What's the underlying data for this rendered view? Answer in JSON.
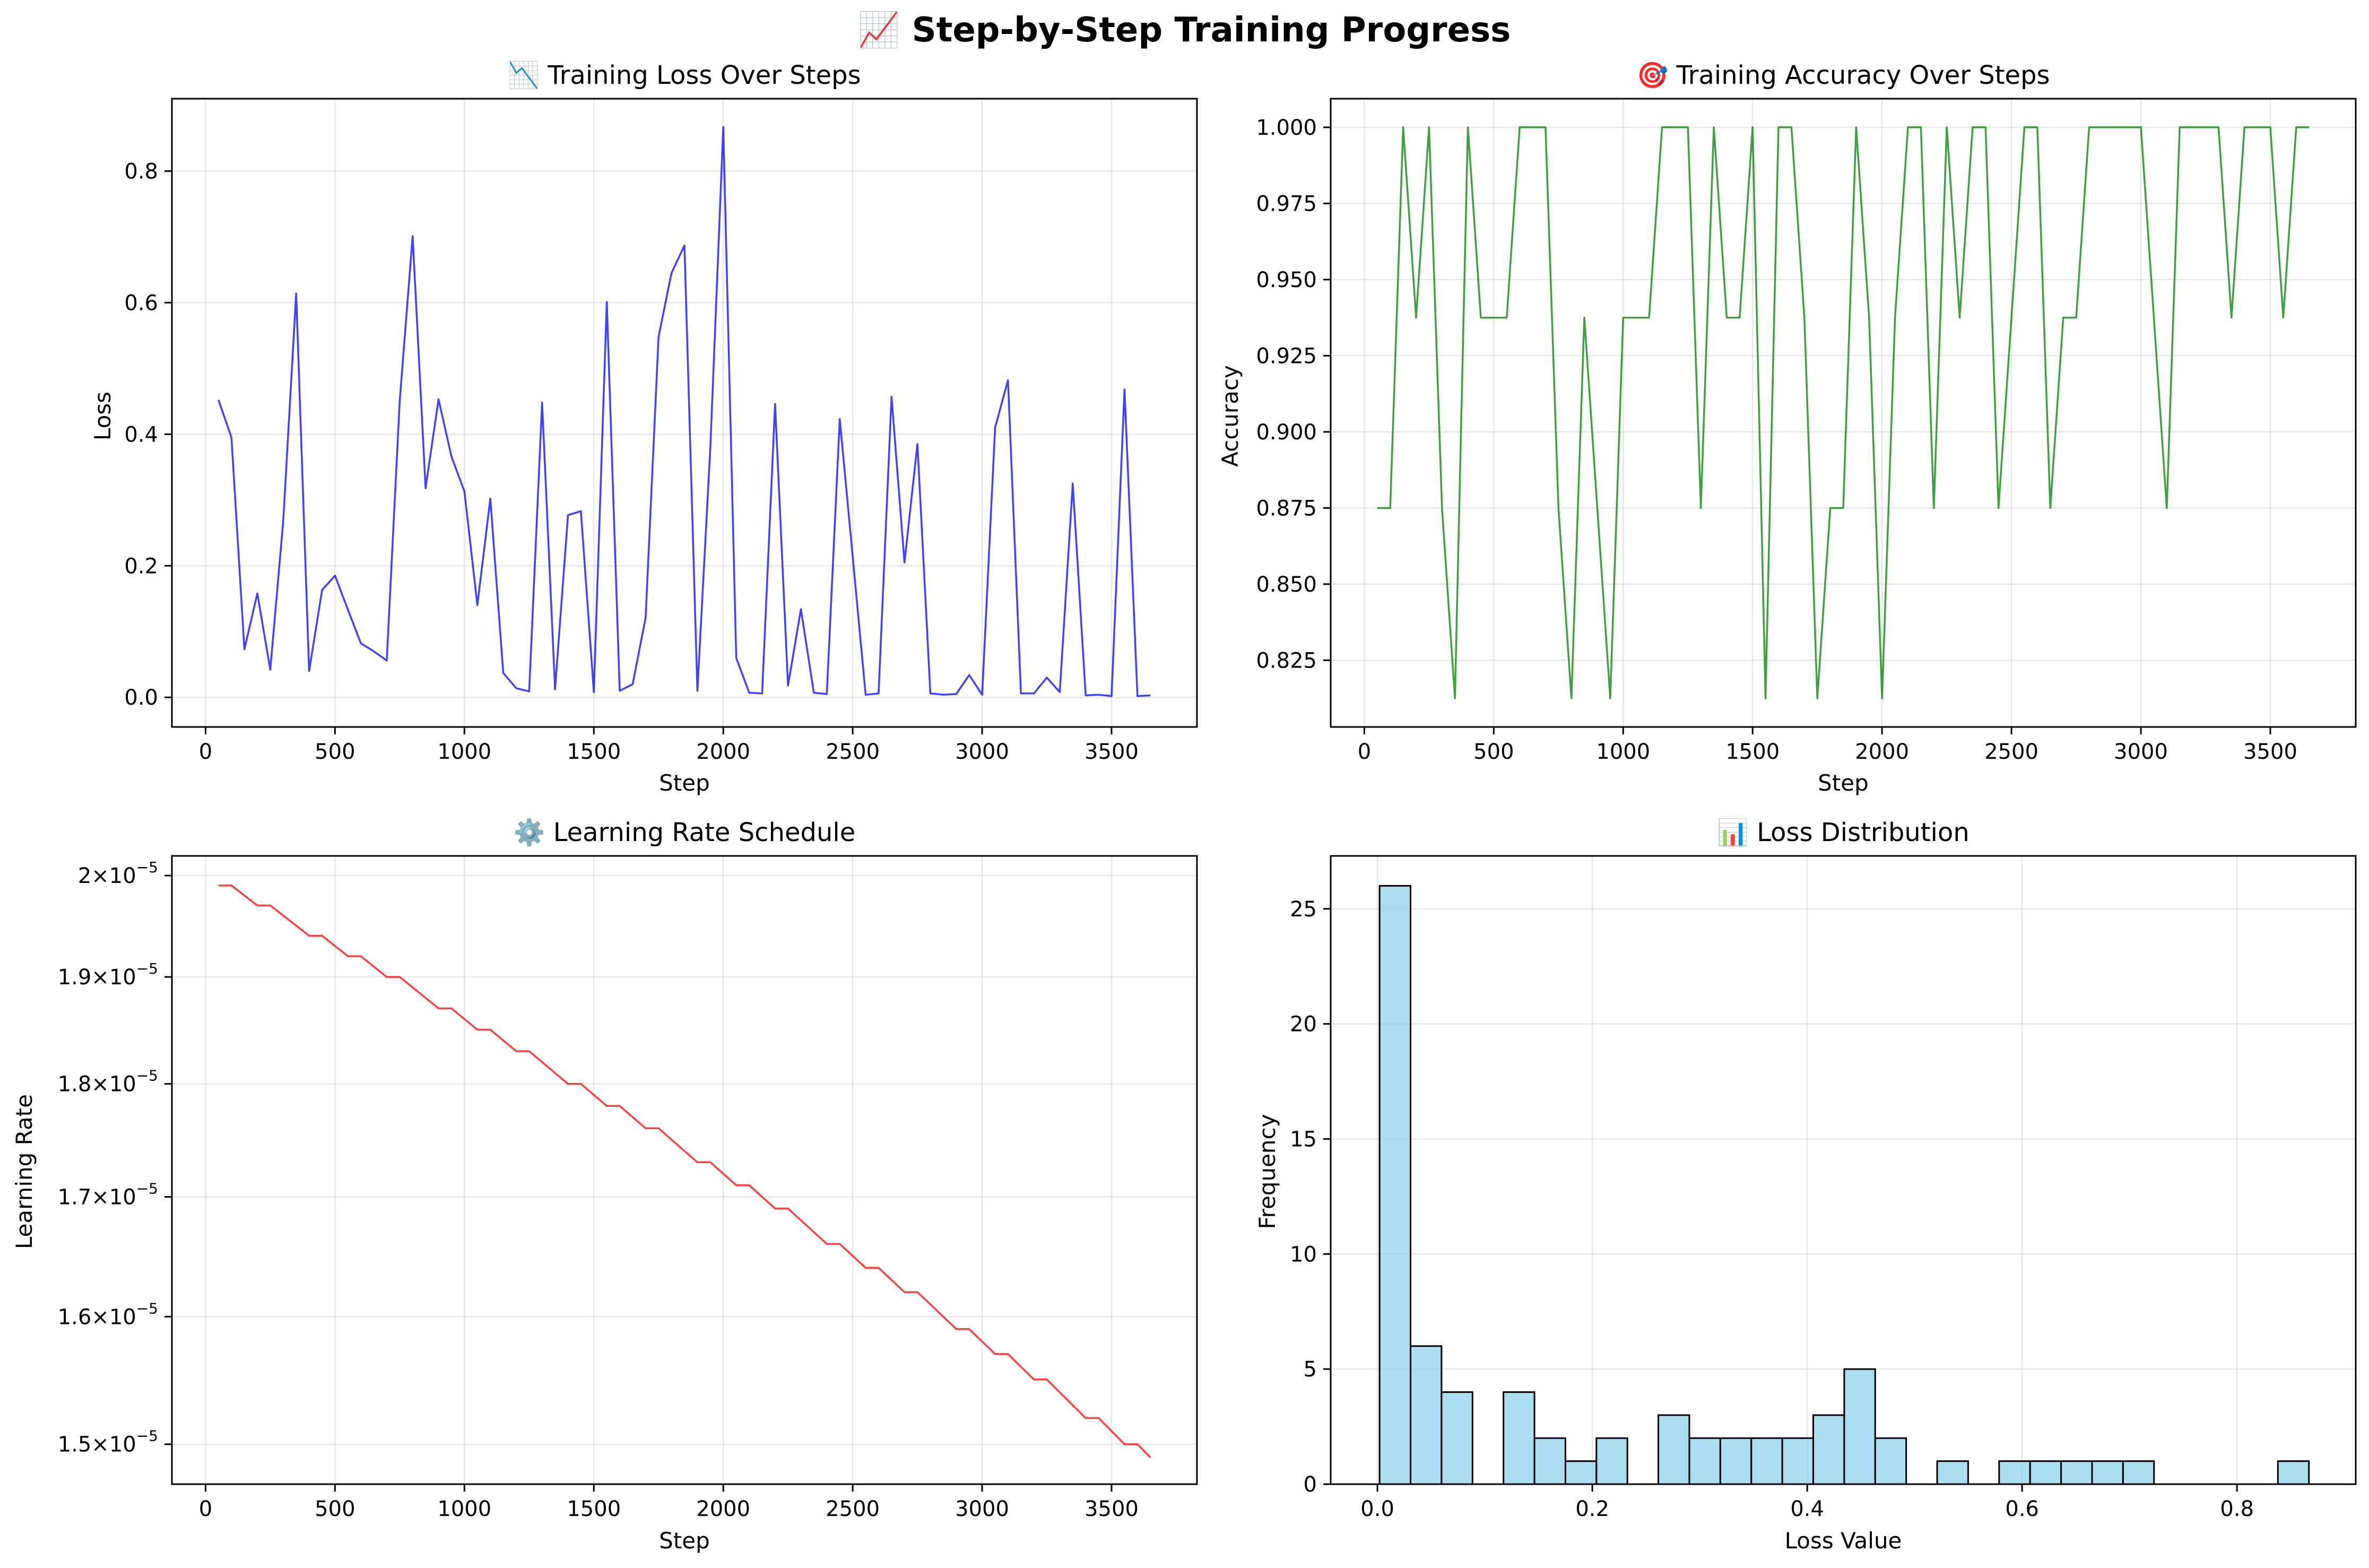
{
  "figure": {
    "title": "📈 Step-by-Step Training Progress"
  },
  "chart_data": [
    {
      "type": "line",
      "title": "📉 Training Loss Over Steps",
      "xlabel": "Step",
      "ylabel": "Loss",
      "color": "#0000ff",
      "xlim": [
        -130,
        3830
      ],
      "ylim": [
        -0.045,
        0.91
      ],
      "xticks": [
        0,
        500,
        1000,
        1500,
        2000,
        2500,
        3000,
        3500
      ],
      "yticks": [
        0.0,
        0.2,
        0.4,
        0.6,
        0.8
      ],
      "ytick_labels": [
        "0.0",
        "0.2",
        "0.4",
        "0.6",
        "0.8"
      ],
      "grid": true,
      "x": [
        50,
        100,
        150,
        200,
        250,
        300,
        350,
        400,
        450,
        500,
        550,
        600,
        650,
        700,
        750,
        800,
        850,
        900,
        950,
        1000,
        1050,
        1100,
        1150,
        1200,
        1250,
        1300,
        1350,
        1400,
        1450,
        1500,
        1550,
        1600,
        1650,
        1700,
        1750,
        1800,
        1850,
        1900,
        1950,
        2000,
        2050,
        2100,
        2150,
        2200,
        2250,
        2300,
        2350,
        2400,
        2450,
        2500,
        2550,
        2600,
        2650,
        2700,
        2750,
        2800,
        2850,
        2900,
        2950,
        3000,
        3050,
        3100,
        3150,
        3200,
        3250,
        3300,
        3350,
        3400,
        3450,
        3500,
        3550,
        3600,
        3650
      ],
      "y": [
        0.452,
        0.395,
        0.073,
        0.158,
        0.042,
        0.268,
        0.614,
        0.04,
        0.163,
        0.185,
        0.133,
        0.082,
        0.07,
        0.056,
        0.45,
        0.701,
        0.318,
        0.453,
        0.366,
        0.313,
        0.14,
        0.302,
        0.037,
        0.014,
        0.009,
        0.448,
        0.012,
        0.277,
        0.283,
        0.008,
        0.601,
        0.01,
        0.02,
        0.121,
        0.548,
        0.645,
        0.687,
        0.01,
        0.38,
        0.867,
        0.06,
        0.007,
        0.006,
        0.446,
        0.018,
        0.134,
        0.007,
        0.005,
        0.423,
        0.214,
        0.004,
        0.006,
        0.457,
        0.205,
        0.385,
        0.006,
        0.004,
        0.005,
        0.034,
        0.004,
        0.41,
        0.482,
        0.006,
        0.006,
        0.03,
        0.008,
        0.325,
        0.003,
        0.004,
        0.002,
        0.468,
        0.002,
        0.003
      ]
    },
    {
      "type": "line",
      "title": "🎯 Training Accuracy Over Steps",
      "xlabel": "Step",
      "ylabel": "Accuracy",
      "color": "#008000",
      "xlim": [
        -130,
        3830
      ],
      "ylim": [
        0.8031,
        1.0094
      ],
      "xticks": [
        0,
        500,
        1000,
        1500,
        2000,
        2500,
        3000,
        3500
      ],
      "yticks": [
        0.825,
        0.85,
        0.875,
        0.9,
        0.925,
        0.95,
        0.975,
        1.0
      ],
      "ytick_labels": [
        "0.825",
        "0.850",
        "0.875",
        "0.900",
        "0.925",
        "0.950",
        "0.975",
        "1.000"
      ],
      "grid": true,
      "x": [
        50,
        100,
        150,
        200,
        250,
        300,
        350,
        400,
        450,
        500,
        550,
        600,
        650,
        700,
        750,
        800,
        850,
        900,
        950,
        1000,
        1050,
        1100,
        1150,
        1200,
        1250,
        1300,
        1350,
        1400,
        1450,
        1500,
        1550,
        1600,
        1650,
        1700,
        1750,
        1800,
        1850,
        1900,
        1950,
        2000,
        2050,
        2100,
        2150,
        2200,
        2250,
        2300,
        2350,
        2400,
        2450,
        2500,
        2550,
        2600,
        2650,
        2700,
        2750,
        2800,
        2850,
        2900,
        2950,
        3000,
        3050,
        3100,
        3150,
        3200,
        3250,
        3300,
        3350,
        3400,
        3450,
        3500,
        3550,
        3600,
        3650
      ],
      "y": [
        0.875,
        0.875,
        1.0,
        0.9375,
        1.0,
        0.875,
        0.8125,
        1.0,
        0.9375,
        0.9375,
        0.9375,
        1.0,
        1.0,
        1.0,
        0.875,
        0.8125,
        0.9375,
        0.875,
        0.8125,
        0.9375,
        0.9375,
        0.9375,
        1.0,
        1.0,
        1.0,
        0.875,
        1.0,
        0.9375,
        0.9375,
        1.0,
        0.8125,
        1.0,
        1.0,
        0.9375,
        0.8125,
        0.875,
        0.875,
        1.0,
        0.9375,
        0.8125,
        0.9375,
        1.0,
        1.0,
        0.875,
        1.0,
        0.9375,
        1.0,
        1.0,
        0.875,
        0.9375,
        1.0,
        1.0,
        0.875,
        0.9375,
        0.9375,
        1.0,
        1.0,
        1.0,
        1.0,
        1.0,
        0.9375,
        0.875,
        1.0,
        1.0,
        1.0,
        1.0,
        0.9375,
        1.0,
        1.0,
        1.0,
        0.9375,
        1.0,
        1.0
      ]
    },
    {
      "type": "line",
      "title": "⚙️ Learning Rate Schedule",
      "xlabel": "Step",
      "ylabel": "Learning Rate",
      "color": "#ff0000",
      "yscale": "log",
      "xlim": [
        -130,
        3830
      ],
      "ylim": [
        1.47e-05,
        2.02e-05
      ],
      "xticks": [
        0,
        500,
        1000,
        1500,
        2000,
        2500,
        3000,
        3500
      ],
      "yticks": [
        1.5e-05,
        1.6e-05,
        1.7e-05,
        1.8e-05,
        1.9e-05,
        2e-05
      ],
      "ytick_labels": [
        [
          "1.5",
          "10",
          "−5"
        ],
        [
          "1.6",
          "10",
          "−5"
        ],
        [
          "1.7",
          "10",
          "−5"
        ],
        [
          "1.8",
          "10",
          "−5"
        ],
        [
          "1.9",
          "10",
          "−5"
        ],
        [
          "2",
          "10",
          "−5"
        ]
      ],
      "grid": true,
      "x": [
        50,
        100,
        200,
        250,
        400,
        450,
        550,
        600,
        700,
        750,
        900,
        950,
        1050,
        1100,
        1200,
        1250,
        1400,
        1450,
        1550,
        1600,
        1700,
        1750,
        1900,
        1950,
        2050,
        2100,
        2200,
        2250,
        2400,
        2450,
        2550,
        2600,
        2700,
        2750,
        2900,
        2950,
        3050,
        3100,
        3200,
        3250,
        3400,
        3450,
        3550,
        3600,
        3650
      ],
      "y": [
        1.99e-05,
        1.99e-05,
        1.97e-05,
        1.97e-05,
        1.94e-05,
        1.94e-05,
        1.92e-05,
        1.92e-05,
        1.9e-05,
        1.9e-05,
        1.87e-05,
        1.87e-05,
        1.85e-05,
        1.85e-05,
        1.83e-05,
        1.83e-05,
        1.8e-05,
        1.8e-05,
        1.78e-05,
        1.78e-05,
        1.76e-05,
        1.76e-05,
        1.73e-05,
        1.73e-05,
        1.71e-05,
        1.71e-05,
        1.69e-05,
        1.69e-05,
        1.66e-05,
        1.66e-05,
        1.64e-05,
        1.64e-05,
        1.62e-05,
        1.62e-05,
        1.59e-05,
        1.59e-05,
        1.57e-05,
        1.57e-05,
        1.55e-05,
        1.55e-05,
        1.52e-05,
        1.52e-05,
        1.5e-05,
        1.5e-05,
        1.49e-05
      ]
    },
    {
      "type": "bar",
      "subtype": "histogram",
      "title": "📊 Loss Distribution",
      "xlabel": "Loss Value",
      "ylabel": "Frequency",
      "color": "#87ceeb",
      "edgecolor": "#000000",
      "xlim": [
        -0.0435,
        0.9105
      ],
      "ylim": [
        0,
        27.3
      ],
      "xticks": [
        0.0,
        0.2,
        0.4,
        0.6,
        0.8
      ],
      "xtick_labels": [
        "0.0",
        "0.2",
        "0.4",
        "0.6",
        "0.8"
      ],
      "yticks": [
        0,
        5,
        10,
        15,
        20,
        25
      ],
      "grid": true,
      "bin_start": 0.002,
      "bin_width": 0.02883,
      "counts": [
        26,
        6,
        4,
        0,
        4,
        2,
        1,
        2,
        0,
        3,
        2,
        2,
        2,
        2,
        3,
        5,
        2,
        0,
        1,
        0,
        1,
        1,
        1,
        1,
        1,
        0,
        0,
        0,
        0,
        1
      ]
    }
  ]
}
